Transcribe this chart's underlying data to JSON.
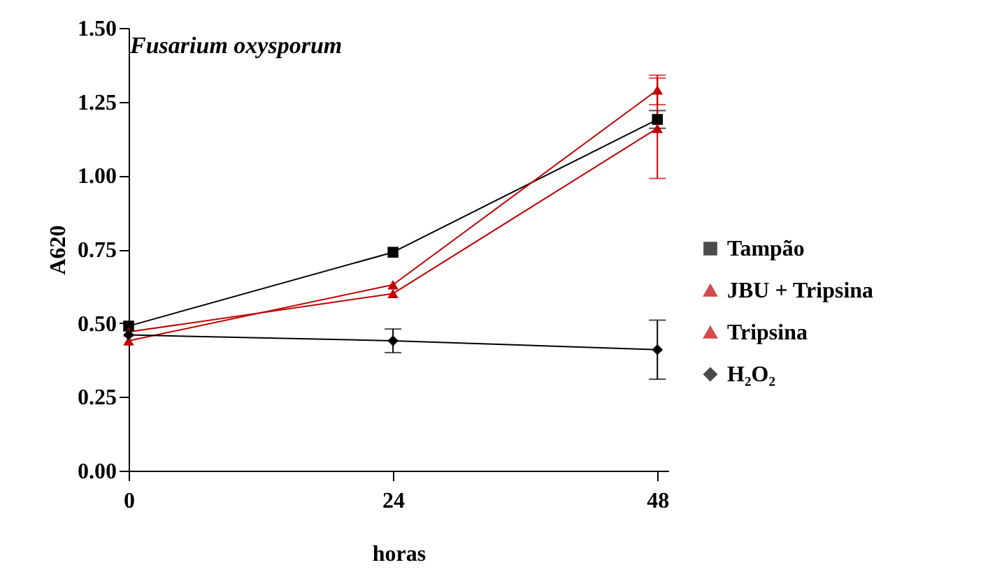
{
  "chart_data": {
    "type": "line",
    "title": "Fusarium oxysporum",
    "xlabel": "horas",
    "ylabel": "A620",
    "x": [
      0,
      24,
      48
    ],
    "xlim": [
      0,
      49
    ],
    "xticks": [
      0,
      24,
      48
    ],
    "ylim": [
      0,
      1.5
    ],
    "yticks": [
      {
        "value": 0,
        "label": "0.00"
      },
      0.25,
      {
        "value": 0.5,
        "label": "0.50"
      },
      0.75,
      {
        "value": 1,
        "label": "1.00"
      },
      1.25,
      {
        "value": 1.5,
        "label": "1.50"
      }
    ],
    "legend": "right",
    "series": [
      {
        "name": "Tampão",
        "color": "#000000",
        "marker": "square",
        "values": [
          0.49,
          0.74,
          1.19
        ],
        "errors": [
          null,
          null,
          0.03
        ]
      },
      {
        "name": "JBU + Tripsina",
        "color": "#c00000",
        "marker": "triangle",
        "values": [
          0.44,
          0.63,
          1.29
        ],
        "errors": [
          null,
          null,
          0.05
        ]
      },
      {
        "name": "Tripsina",
        "color": "#c00000",
        "marker": "triangle",
        "values": [
          0.47,
          0.6,
          1.16
        ],
        "errors": [
          null,
          null,
          0.17
        ]
      },
      {
        "name": "H₂O₂",
        "color": "#000000",
        "marker": "diamond",
        "values": [
          0.46,
          0.44,
          0.41
        ],
        "errors": [
          null,
          0.04,
          0.1
        ]
      }
    ]
  }
}
